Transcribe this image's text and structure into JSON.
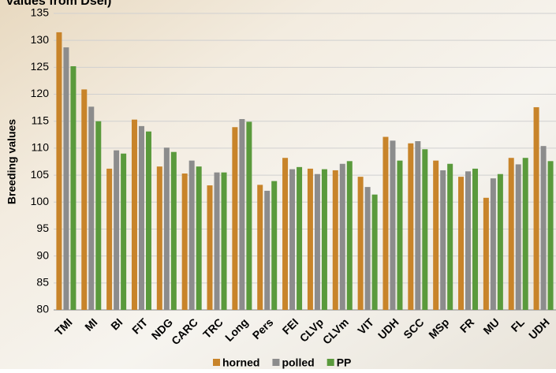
{
  "chart_data": {
    "type": "bar",
    "title": "values from Dsel)",
    "y_label": "Breeding values",
    "categories": [
      "TMI",
      "MI",
      "BI",
      "FIT",
      "NDG",
      "CARC",
      "TRC",
      "Long",
      "Pers",
      "FEI",
      "CLVp",
      "CLVm",
      "VIT",
      "UDH",
      "SCC",
      "MSp",
      "FR",
      "MU",
      "FL",
      "UDH"
    ],
    "series": [
      {
        "name": "horned",
        "color": "#c8842a",
        "values": [
          131.5,
          120.9,
          106.2,
          115.3,
          106.6,
          105.3,
          103.1,
          113.9,
          103.2,
          108.2,
          106.2,
          105.9,
          104.7,
          112.1,
          110.9,
          107.7,
          104.7,
          100.8,
          108.2,
          117.6
        ]
      },
      {
        "name": "polled",
        "color": "#8c8c8c",
        "values": [
          128.7,
          117.7,
          109.6,
          114.1,
          110.1,
          107.7,
          105.5,
          115.4,
          102.1,
          106.1,
          105.2,
          107.1,
          102.8,
          111.4,
          111.3,
          105.9,
          105.7,
          104.4,
          107.0,
          110.4
        ]
      },
      {
        "name": "PP",
        "color": "#5a9a3c",
        "values": [
          125.2,
          115.0,
          109.0,
          113.1,
          109.3,
          106.6,
          105.5,
          114.9,
          103.9,
          106.5,
          106.1,
          107.6,
          101.4,
          107.7,
          109.8,
          107.1,
          106.2,
          105.2,
          108.2,
          107.6
        ]
      }
    ],
    "ylim": [
      80,
      135
    ],
    "yticks": [
      80,
      85,
      90,
      95,
      100,
      105,
      110,
      115,
      120,
      125,
      130,
      135
    ],
    "grid": true,
    "legend": "bottom"
  }
}
